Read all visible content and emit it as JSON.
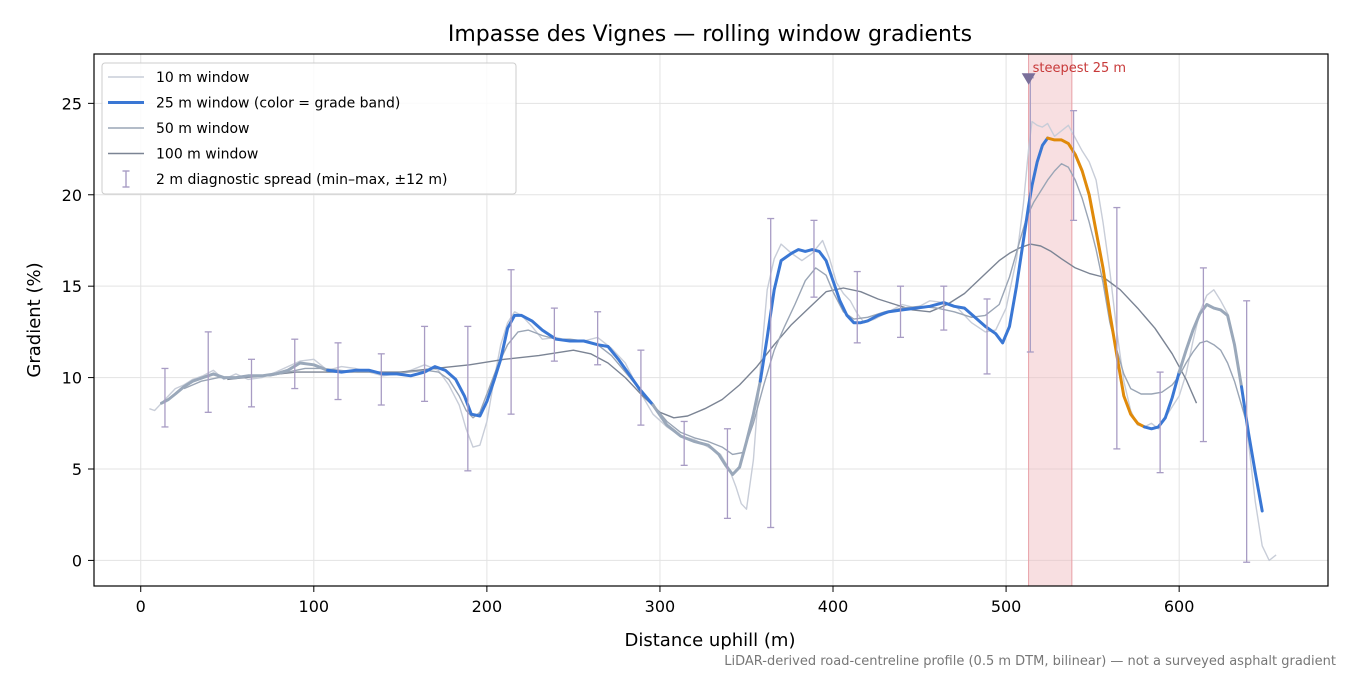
{
  "chart_data": {
    "type": "line",
    "title": "Impasse des Vignes — rolling window gradients",
    "xlabel": "Distance uphill (m)",
    "ylabel": "Gradient (%)",
    "xlim": [
      -27,
      686
    ],
    "ylim": [
      -1.4,
      27.7
    ],
    "xticks": [
      0,
      100,
      200,
      300,
      400,
      500,
      600
    ],
    "yticks": [
      0,
      5,
      10,
      15,
      20,
      25
    ],
    "grid": true,
    "legend_position": "top-left",
    "colors": {
      "w10": "#c8cdd8",
      "w25": "#3a77d4",
      "w25_alt": "#9aa8ba",
      "w25_steep": "#e08a0a",
      "w50": "#9aa5b5",
      "w100": "#7b8494",
      "err": "#a89cc4",
      "highlight": "#f0b8bd",
      "annot": "#c83a3a"
    },
    "legend": [
      {
        "key": "w10",
        "label": "10 m window"
      },
      {
        "key": "w25",
        "label": "25 m window (color = grade band)"
      },
      {
        "key": "w50",
        "label": "50 m window"
      },
      {
        "key": "w100",
        "label": "100 m window"
      },
      {
        "key": "err",
        "label": "2 m diagnostic spread (min–max, ±12 m)"
      }
    ],
    "series": [
      {
        "key": "w10",
        "x": [
          5,
          8,
          12,
          16,
          20,
          25,
          30,
          36,
          42,
          48,
          55,
          62,
          70,
          78,
          85,
          92,
          100,
          108,
          116,
          124,
          132,
          140,
          148,
          156,
          164,
          172,
          178,
          184,
          188,
          192,
          196,
          200,
          204,
          208,
          212,
          216,
          220,
          226,
          232,
          240,
          248,
          256,
          264,
          272,
          280,
          288,
          296,
          304,
          312,
          320,
          328,
          335,
          340,
          344,
          347,
          350,
          354,
          358,
          362,
          366,
          370,
          376,
          382,
          388,
          394,
          398,
          402,
          406,
          410,
          414,
          418,
          424,
          432,
          440,
          448,
          456,
          464,
          472,
          480,
          488,
          494,
          500,
          506,
          510,
          513,
          515,
          518,
          521,
          524,
          528,
          532,
          536,
          540,
          544,
          548,
          552,
          556,
          560,
          564,
          568,
          572,
          576,
          580,
          584,
          588,
          592,
          596,
          600,
          604,
          608,
          612,
          616,
          620,
          624,
          628,
          632,
          636,
          640,
          644,
          648,
          652,
          656
        ],
        "y": [
          8.3,
          8.2,
          8.6,
          9.0,
          9.4,
          9.6,
          9.9,
          10.1,
          10.4,
          9.9,
          10.2,
          9.9,
          10.0,
          10.3,
          10.6,
          10.9,
          11.0,
          10.4,
          10.6,
          10.5,
          10.3,
          10.1,
          10.2,
          10.4,
          10.7,
          10.4,
          9.6,
          8.5,
          7.2,
          6.2,
          6.3,
          7.6,
          9.8,
          11.8,
          13.0,
          13.6,
          13.4,
          12.8,
          12.1,
          12.2,
          12.0,
          12.0,
          12.2,
          11.6,
          10.8,
          9.3,
          8.0,
          7.3,
          6.8,
          6.6,
          6.2,
          5.8,
          5.0,
          4.0,
          3.1,
          2.8,
          5.5,
          10.5,
          14.8,
          16.5,
          17.3,
          16.8,
          16.4,
          16.8,
          17.5,
          16.5,
          15.2,
          14.6,
          14.2,
          13.5,
          13.0,
          13.2,
          13.6,
          14.0,
          13.8,
          14.2,
          14.1,
          13.8,
          13.0,
          12.5,
          12.6,
          13.8,
          16.5,
          19.5,
          22.5,
          24.0,
          23.8,
          23.7,
          23.9,
          23.2,
          23.5,
          23.8,
          23.1,
          22.4,
          21.8,
          20.8,
          18.5,
          15.8,
          12.5,
          9.8,
          8.2,
          7.4,
          7.3,
          7.5,
          7.2,
          7.8,
          8.4,
          9.0,
          10.2,
          12.0,
          13.6,
          14.5,
          14.8,
          14.2,
          13.5,
          11.8,
          9.5,
          6.5,
          3.2,
          0.8,
          0.0,
          0.3
        ]
      },
      {
        "key": "w25",
        "x": [
          12,
          16,
          20,
          25,
          30,
          36,
          42,
          48,
          55,
          62,
          70,
          78,
          85,
          92,
          100,
          108,
          116,
          124,
          132,
          140,
          148,
          156,
          164,
          170,
          176,
          182,
          187,
          191,
          196,
          200,
          204,
          208,
          212,
          216,
          220,
          226,
          232,
          240,
          248,
          256,
          264,
          270,
          276,
          282,
          288,
          296,
          304,
          312,
          320,
          328,
          334,
          338,
          342,
          346,
          350,
          354,
          358,
          362,
          366,
          370,
          376,
          380,
          384,
          388,
          392,
          396,
          400,
          404,
          408,
          412,
          416,
          420,
          426,
          432,
          440,
          448,
          456,
          464,
          470,
          476,
          482,
          488,
          494,
          498,
          502,
          506,
          510,
          513,
          515,
          518,
          521,
          524,
          528,
          532,
          536,
          540,
          544,
          548,
          552,
          556,
          560,
          564,
          568,
          572,
          576,
          580,
          584,
          588,
          592,
          596,
          600,
          604,
          608,
          612,
          616,
          620,
          624,
          628,
          632,
          636,
          640,
          644,
          648
        ],
        "y": [
          8.6,
          8.8,
          9.1,
          9.5,
          9.8,
          10.0,
          10.2,
          10.0,
          10.0,
          10.1,
          10.1,
          10.2,
          10.4,
          10.8,
          10.7,
          10.4,
          10.3,
          10.4,
          10.4,
          10.2,
          10.2,
          10.1,
          10.3,
          10.6,
          10.4,
          9.9,
          9.0,
          8.0,
          7.9,
          8.7,
          9.8,
          11.0,
          12.7,
          13.4,
          13.4,
          13.1,
          12.6,
          12.1,
          12.0,
          12.0,
          11.8,
          11.7,
          11.0,
          10.2,
          9.4,
          8.5,
          7.4,
          6.8,
          6.5,
          6.3,
          5.8,
          5.2,
          4.7,
          5.1,
          6.5,
          8.0,
          9.8,
          12.2,
          14.8,
          16.4,
          16.8,
          17.0,
          16.9,
          17.0,
          16.9,
          16.4,
          15.3,
          14.2,
          13.4,
          13.0,
          13.0,
          13.1,
          13.4,
          13.6,
          13.7,
          13.8,
          13.9,
          14.1,
          13.9,
          13.8,
          13.3,
          12.8,
          12.4,
          11.9,
          12.8,
          15.0,
          17.5,
          19.4,
          20.5,
          21.8,
          22.7,
          23.1,
          23.0,
          23.0,
          22.8,
          22.2,
          21.3,
          20.0,
          18.0,
          16.0,
          13.5,
          11.2,
          9.0,
          8.0,
          7.5,
          7.3,
          7.2,
          7.3,
          7.8,
          8.9,
          10.3,
          11.5,
          12.6,
          13.5,
          14.0,
          13.8,
          13.7,
          13.4,
          11.8,
          9.5,
          7.0,
          4.8,
          2.7
        ]
      },
      {
        "key": "w50",
        "x": [
          25,
          35,
          45,
          55,
          65,
          75,
          85,
          95,
          105,
          115,
          125,
          135,
          145,
          155,
          165,
          172,
          178,
          184,
          188,
          192,
          196,
          200,
          206,
          212,
          218,
          224,
          232,
          240,
          248,
          256,
          264,
          272,
          280,
          288,
          296,
          304,
          312,
          320,
          328,
          336,
          342,
          348,
          354,
          360,
          366,
          372,
          378,
          384,
          390,
          396,
          400,
          406,
          412,
          420,
          430,
          440,
          450,
          460,
          470,
          480,
          488,
          496,
          502,
          508,
          512,
          516,
          520,
          524,
          528,
          532,
          536,
          540,
          544,
          548,
          552,
          556,
          560,
          564,
          568,
          572,
          578,
          584,
          590,
          596,
          600,
          604,
          608,
          612,
          616,
          620,
          624,
          628,
          632,
          636,
          640
        ],
        "y": [
          9.4,
          9.8,
          10.0,
          10.0,
          10.1,
          10.1,
          10.3,
          10.5,
          10.5,
          10.4,
          10.3,
          10.3,
          10.2,
          10.3,
          10.4,
          10.3,
          9.9,
          9.0,
          8.2,
          7.8,
          8.1,
          9.1,
          10.6,
          11.8,
          12.5,
          12.6,
          12.3,
          12.1,
          12.1,
          12.0,
          11.8,
          11.2,
          10.3,
          9.4,
          8.5,
          7.6,
          7.0,
          6.7,
          6.5,
          6.2,
          5.8,
          5.9,
          7.5,
          9.6,
          11.5,
          12.8,
          14.0,
          15.3,
          16.0,
          15.6,
          14.7,
          13.6,
          13.2,
          13.3,
          13.6,
          13.8,
          13.9,
          13.8,
          13.6,
          13.3,
          13.4,
          14.0,
          15.5,
          17.5,
          18.8,
          19.6,
          20.2,
          20.8,
          21.3,
          21.7,
          21.5,
          20.8,
          19.8,
          18.5,
          17.0,
          15.2,
          13.0,
          11.5,
          10.2,
          9.4,
          9.1,
          9.1,
          9.2,
          9.6,
          10.1,
          10.8,
          11.4,
          11.9,
          12.0,
          11.8,
          11.5,
          10.8,
          9.8,
          8.5,
          7.2
        ]
      },
      {
        "key": "w100",
        "x": [
          50,
          70,
          90,
          110,
          130,
          150,
          170,
          190,
          210,
          230,
          250,
          260,
          270,
          280,
          290,
          300,
          308,
          316,
          326,
          336,
          346,
          356,
          366,
          376,
          386,
          396,
          406,
          416,
          426,
          436,
          446,
          456,
          466,
          476,
          486,
          496,
          502,
          508,
          514,
          520,
          526,
          532,
          540,
          548,
          556,
          566,
          576,
          586,
          596,
          604,
          610
        ],
        "y": [
          9.9,
          10.1,
          10.3,
          10.3,
          10.3,
          10.3,
          10.5,
          10.7,
          11.0,
          11.2,
          11.5,
          11.3,
          10.8,
          10.0,
          9.0,
          8.1,
          7.8,
          7.9,
          8.3,
          8.8,
          9.6,
          10.6,
          11.8,
          12.9,
          13.8,
          14.7,
          14.9,
          14.7,
          14.3,
          14.0,
          13.7,
          13.6,
          14.0,
          14.6,
          15.5,
          16.4,
          16.8,
          17.1,
          17.3,
          17.2,
          16.9,
          16.5,
          16.0,
          15.7,
          15.5,
          14.8,
          13.8,
          12.7,
          11.3,
          9.9,
          8.6
        ]
      }
    ],
    "w25_bands": [
      {
        "band": "alt",
        "from": 0,
        "to": 15
      },
      {
        "band": "main",
        "from": 15,
        "to": 45
      },
      {
        "band": "alt",
        "from": 45,
        "to": 56
      },
      {
        "band": "main",
        "from": 56,
        "to": 91
      },
      {
        "band": "steep",
        "from": 91,
        "to": 105
      },
      {
        "band": "main",
        "from": 105,
        "to": 110
      },
      {
        "band": "alt",
        "from": 110,
        "to": 119
      },
      {
        "band": "main",
        "from": 119,
        "to": 127
      },
      {
        "band": "alt",
        "from": 127,
        "to": 132
      }
    ],
    "error_bars": [
      {
        "x": 14,
        "lo": 7.3,
        "hi": 10.5
      },
      {
        "x": 39,
        "lo": 8.1,
        "hi": 12.5
      },
      {
        "x": 64,
        "lo": 8.4,
        "hi": 11.0
      },
      {
        "x": 89,
        "lo": 9.4,
        "hi": 12.1
      },
      {
        "x": 114,
        "lo": 8.8,
        "hi": 11.9
      },
      {
        "x": 139,
        "lo": 8.5,
        "hi": 11.3
      },
      {
        "x": 164,
        "lo": 8.7,
        "hi": 12.8
      },
      {
        "x": 189,
        "lo": 4.9,
        "hi": 12.8
      },
      {
        "x": 214,
        "lo": 8.0,
        "hi": 15.9
      },
      {
        "x": 239,
        "lo": 10.9,
        "hi": 13.8
      },
      {
        "x": 264,
        "lo": 10.7,
        "hi": 13.6
      },
      {
        "x": 289,
        "lo": 7.4,
        "hi": 11.5
      },
      {
        "x": 314,
        "lo": 5.2,
        "hi": 7.6
      },
      {
        "x": 339,
        "lo": 2.3,
        "hi": 7.2
      },
      {
        "x": 364,
        "lo": 1.8,
        "hi": 18.7
      },
      {
        "x": 389,
        "lo": 14.4,
        "hi": 18.6
      },
      {
        "x": 414,
        "lo": 11.9,
        "hi": 15.8
      },
      {
        "x": 439,
        "lo": 12.2,
        "hi": 15.0
      },
      {
        "x": 464,
        "lo": 12.6,
        "hi": 15.0
      },
      {
        "x": 489,
        "lo": 10.2,
        "hi": 14.3
      },
      {
        "x": 514,
        "lo": 11.4,
        "hi": 26.4
      },
      {
        "x": 539,
        "lo": 18.6,
        "hi": 24.6
      },
      {
        "x": 564,
        "lo": 6.1,
        "hi": 19.3
      },
      {
        "x": 589,
        "lo": 4.8,
        "hi": 10.3
      },
      {
        "x": 614,
        "lo": 6.5,
        "hi": 16.0
      },
      {
        "x": 639,
        "lo": -0.1,
        "hi": 14.2
      }
    ],
    "highlight": {
      "x0": 513,
      "x1": 538,
      "label": "steepest 25 m",
      "marker_x": 513,
      "marker_y": 26.4
    },
    "footnote": "LiDAR-derived road-centreline profile (0.5 m DTM, bilinear) — not a surveyed asphalt gradient"
  }
}
